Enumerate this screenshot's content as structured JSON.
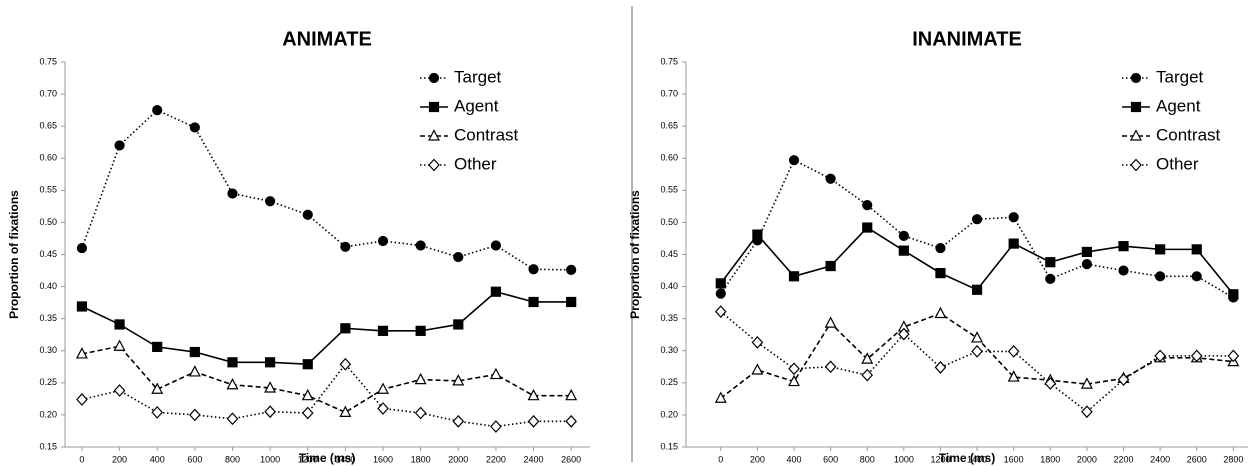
{
  "chart_data": [
    {
      "type": "line",
      "title": "ANIMATE",
      "x_label": "Time (ms)",
      "y_label": "Proportion of fixations",
      "x": [
        0,
        200,
        400,
        600,
        800,
        1000,
        1200,
        1400,
        1600,
        1800,
        2000,
        2200,
        2400,
        2600
      ],
      "xlim": [
        -90,
        2700
      ],
      "xticks": [
        0,
        200,
        400,
        600,
        800,
        1000,
        1200,
        1400,
        1600,
        1800,
        2000,
        2200,
        2400,
        2600
      ],
      "ylim": [
        0.15,
        0.75
      ],
      "yticks": [
        {
          "value": 0.15,
          "label": "0.15"
        },
        {
          "value": 0.2,
          "label": "0.20"
        },
        {
          "value": 0.25,
          "label": "0.25"
        },
        {
          "value": 0.3,
          "label": "0.30"
        },
        {
          "value": 0.35,
          "label": "0.35"
        },
        {
          "value": 0.4,
          "label": "0.40"
        },
        {
          "value": 0.45,
          "label": "0.45"
        },
        {
          "value": 0.5,
          "label": "0.50"
        },
        {
          "value": 0.55,
          "label": "0.55"
        },
        {
          "value": 0.6,
          "label": "0.60"
        },
        {
          "value": 0.65,
          "label": "0.65"
        },
        {
          "value": 0.7,
          "label": "0.70"
        },
        {
          "value": 0.75,
          "label": "0.75"
        }
      ],
      "legend": "upper right",
      "series": [
        {
          "name": "Target",
          "color": "#000",
          "marker": "circle",
          "dash": "dotted",
          "filled": true,
          "values": [
            0.46,
            0.62,
            0.675,
            0.648,
            0.545,
            0.533,
            0.512,
            0.462,
            0.471,
            0.464,
            0.446,
            0.464,
            0.427,
            0.426
          ]
        },
        {
          "name": "Agent",
          "color": "#000",
          "marker": "square",
          "dash": "solid",
          "filled": true,
          "values": [
            0.369,
            0.341,
            0.306,
            0.298,
            0.282,
            0.282,
            0.279,
            0.335,
            0.331,
            0.331,
            0.341,
            0.392,
            0.376,
            0.376
          ]
        },
        {
          "name": "Contrast",
          "color": "#000",
          "marker": "triangle",
          "dash": "dashed",
          "filled": false,
          "values": [
            0.295,
            0.307,
            0.24,
            0.267,
            0.247,
            0.242,
            0.23,
            0.204,
            0.24,
            0.255,
            0.253,
            0.263,
            0.23,
            0.23
          ]
        },
        {
          "name": "Other",
          "color": "#000",
          "marker": "diamond",
          "dash": "dotted",
          "filled": false,
          "values": [
            0.224,
            0.238,
            0.204,
            0.2,
            0.194,
            0.205,
            0.203,
            0.279,
            0.21,
            0.203,
            0.19,
            0.182,
            0.19,
            0.19
          ]
        }
      ]
    },
    {
      "type": "line",
      "title": "INANIMATE",
      "x_label": "Time (ms)",
      "y_label": "Proportion of fixations",
      "x": [
        0,
        200,
        400,
        600,
        800,
        1000,
        1200,
        1400,
        1600,
        1800,
        2000,
        2200,
        2400,
        2600,
        2800
      ],
      "xlim": [
        -190,
        2880
      ],
      "xticks": [
        0,
        200,
        400,
        600,
        800,
        1000,
        1200,
        1400,
        1600,
        1800,
        2000,
        2200,
        2400,
        2600,
        2800
      ],
      "ylim": [
        0.15,
        0.75
      ],
      "yticks": [
        {
          "value": 0.15,
          "label": "0.15"
        },
        {
          "value": 0.2,
          "label": "0.20"
        },
        {
          "value": 0.25,
          "label": "0.25"
        },
        {
          "value": 0.3,
          "label": "0.30"
        },
        {
          "value": 0.35,
          "label": "0.35"
        },
        {
          "value": 0.4,
          "label": "0.40"
        },
        {
          "value": 0.45,
          "label": "0.45"
        },
        {
          "value": 0.5,
          "label": "0.50"
        },
        {
          "value": 0.55,
          "label": "0.55"
        },
        {
          "value": 0.6,
          "label": "0.60"
        },
        {
          "value": 0.65,
          "label": "0.65"
        },
        {
          "value": 0.7,
          "label": "0.70"
        },
        {
          "value": 0.75,
          "label": "0.75"
        }
      ],
      "legend": "upper right",
      "series": [
        {
          "name": "Target",
          "color": "#000",
          "marker": "circle",
          "dash": "dotted",
          "filled": true,
          "values": [
            0.389,
            0.472,
            0.597,
            0.568,
            0.527,
            0.479,
            0.46,
            0.505,
            0.508,
            0.412,
            0.435,
            0.425,
            0.416,
            0.416,
            0.383
          ]
        },
        {
          "name": "Agent",
          "color": "#000",
          "marker": "square",
          "dash": "solid",
          "filled": true,
          "values": [
            0.405,
            0.481,
            0.416,
            0.432,
            0.492,
            0.456,
            0.421,
            0.395,
            0.467,
            0.438,
            0.454,
            0.463,
            0.458,
            0.458,
            0.388
          ]
        },
        {
          "name": "Contrast",
          "color": "#000",
          "marker": "triangle",
          "dash": "dashed",
          "filled": false,
          "values": [
            0.226,
            0.27,
            0.252,
            0.343,
            0.287,
            0.337,
            0.358,
            0.32,
            0.259,
            0.254,
            0.248,
            0.257,
            0.289,
            0.289,
            0.283
          ]
        },
        {
          "name": "Other",
          "color": "#000",
          "marker": "diamond",
          "dash": "dotted",
          "filled": false,
          "values": [
            0.361,
            0.313,
            0.272,
            0.275,
            0.262,
            0.326,
            0.274,
            0.299,
            0.299,
            0.249,
            0.205,
            0.255,
            0.292,
            0.292,
            0.292
          ]
        }
      ]
    }
  ]
}
